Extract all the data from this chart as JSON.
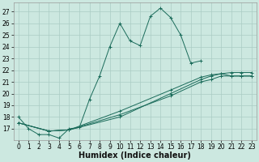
{
  "xlabel": "Humidex (Indice chaleur)",
  "ylabel": "",
  "xlim": [
    -0.5,
    23.5
  ],
  "ylim": [
    16.0,
    27.8
  ],
  "xticks": [
    0,
    1,
    2,
    3,
    4,
    5,
    6,
    7,
    8,
    9,
    10,
    11,
    12,
    13,
    14,
    15,
    16,
    17,
    18,
    19,
    20,
    21,
    22,
    23
  ],
  "yticks": [
    17,
    18,
    19,
    20,
    21,
    22,
    23,
    24,
    25,
    26,
    27
  ],
  "background_color": "#cce8e0",
  "grid_color": "#aaccC4",
  "line_color": "#1a6b5a",
  "lines": [
    {
      "x": [
        0,
        1,
        2,
        3,
        4,
        5,
        6,
        7,
        8,
        9,
        10,
        11,
        12,
        13,
        14,
        15,
        16,
        17,
        18
      ],
      "y": [
        18,
        17,
        16.5,
        16.5,
        16.2,
        17.0,
        17.1,
        19.5,
        21.5,
        24.0,
        26.0,
        24.5,
        24.1,
        26.6,
        27.3,
        26.5,
        25.0,
        22.6,
        22.8
      ]
    },
    {
      "x": [
        0,
        3,
        5,
        10,
        15,
        18,
        19,
        20,
        21,
        22,
        23
      ],
      "y": [
        17.5,
        16.8,
        16.9,
        18.2,
        19.8,
        21.0,
        21.2,
        21.5,
        21.5,
        21.5,
        21.5
      ]
    },
    {
      "x": [
        0,
        3,
        5,
        10,
        15,
        18,
        19,
        20,
        21,
        22,
        23
      ],
      "y": [
        17.5,
        16.8,
        16.9,
        18.5,
        20.3,
        21.4,
        21.6,
        21.7,
        21.8,
        21.8,
        21.8
      ]
    },
    {
      "x": [
        0,
        3,
        5,
        10,
        15,
        18,
        19,
        20,
        21,
        22,
        23
      ],
      "y": [
        17.5,
        16.8,
        16.9,
        18.0,
        20.0,
        21.2,
        21.5,
        21.7,
        21.5,
        21.5,
        21.5
      ]
    }
  ],
  "tick_fontsize": 5.5,
  "xlabel_fontsize": 7.0
}
